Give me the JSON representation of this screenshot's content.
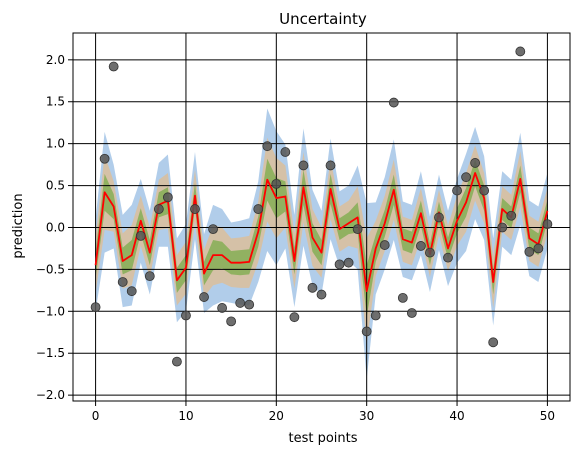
{
  "chart_data": {
    "type": "line",
    "title": "Uncertainty",
    "xlabel": "test points",
    "ylabel": "prediction",
    "xlim": [
      -2.5,
      52.5
    ],
    "ylim": [
      -2.07,
      2.32
    ],
    "xticks": [
      0,
      10,
      20,
      30,
      40,
      50
    ],
    "yticks": [
      -2.0,
      -1.5,
      -1.0,
      -0.5,
      0.0,
      0.5,
      1.0,
      1.5,
      2.0
    ],
    "xtick_labels": [
      "0",
      "10",
      "20",
      "30",
      "40",
      "50"
    ],
    "ytick_labels": [
      "−2.0",
      "−1.5",
      "−1.0",
      "−0.5",
      "0.0",
      "0.5",
      "1.0",
      "1.5",
      "2.0"
    ],
    "grid": true,
    "x": [
      0,
      1,
      2,
      3,
      4,
      5,
      6,
      7,
      8,
      9,
      10,
      11,
      12,
      13,
      14,
      15,
      16,
      17,
      18,
      19,
      20,
      21,
      22,
      23,
      24,
      25,
      26,
      27,
      28,
      29,
      30,
      31,
      32,
      33,
      34,
      35,
      36,
      37,
      38,
      39,
      40,
      41,
      42,
      43,
      44,
      45,
      46,
      47,
      48,
      49,
      50
    ],
    "series": [
      {
        "role": "mean",
        "color": "#ff0000",
        "values": [
          -0.45,
          0.42,
          0.25,
          -0.4,
          -0.33,
          0.08,
          -0.3,
          0.27,
          0.32,
          -0.63,
          -0.48,
          0.38,
          -0.55,
          -0.33,
          -0.33,
          -0.42,
          -0.42,
          -0.41,
          -0.05,
          0.57,
          0.35,
          0.37,
          -0.4,
          0.48,
          -0.12,
          -0.3,
          0.46,
          -0.02,
          0.05,
          0.12,
          -0.76,
          -0.25,
          0.05,
          0.45,
          -0.14,
          -0.18,
          0.17,
          -0.32,
          0.18,
          -0.25,
          0.08,
          0.3,
          0.65,
          0.35,
          -0.65,
          0.22,
          0.12,
          0.58,
          -0.13,
          -0.2,
          0.2
        ]
      },
      {
        "role": "observations",
        "color": "#555555",
        "points": [
          [
            0,
            -0.95
          ],
          [
            1,
            0.82
          ],
          [
            2,
            1.92
          ],
          [
            3,
            -0.65
          ],
          [
            4,
            -0.76
          ],
          [
            5,
            -0.1
          ],
          [
            6,
            -0.58
          ],
          [
            7,
            0.22
          ],
          [
            8,
            0.36
          ],
          [
            9,
            -1.6
          ],
          [
            10,
            -1.05
          ],
          [
            11,
            0.22
          ],
          [
            12,
            -0.83
          ],
          [
            13,
            -0.02
          ],
          [
            14,
            -0.96
          ],
          [
            15,
            -1.12
          ],
          [
            16,
            -0.9
          ],
          [
            17,
            -0.92
          ],
          [
            18,
            0.22
          ],
          [
            19,
            0.97
          ],
          [
            20,
            0.52
          ],
          [
            21,
            0.9
          ],
          [
            22,
            -1.07
          ],
          [
            23,
            0.74
          ],
          [
            24,
            -0.72
          ],
          [
            25,
            -0.8
          ],
          [
            26,
            0.74
          ],
          [
            27,
            -0.44
          ],
          [
            28,
            -0.42
          ],
          [
            29,
            -0.02
          ],
          [
            30,
            -1.24
          ],
          [
            31,
            -1.05
          ],
          [
            32,
            -0.21
          ],
          [
            33,
            1.49
          ],
          [
            34,
            -0.84
          ],
          [
            35,
            -1.02
          ],
          [
            36,
            -0.22
          ],
          [
            37,
            -0.3
          ],
          [
            38,
            0.12
          ],
          [
            39,
            -0.36
          ],
          [
            40,
            0.44
          ],
          [
            41,
            0.6
          ],
          [
            42,
            0.77
          ],
          [
            43,
            0.44
          ],
          [
            44,
            -1.37
          ],
          [
            45,
            0.0
          ],
          [
            46,
            0.14
          ],
          [
            47,
            2.1
          ],
          [
            48,
            -0.29
          ],
          [
            49,
            -0.25
          ],
          [
            50,
            0.04
          ]
        ]
      }
    ],
    "bands": [
      {
        "role": "outer",
        "color": "#a8c8e8",
        "half_width": [
          0.55,
          0.72,
          0.5,
          0.55,
          0.6,
          0.5,
          0.5,
          0.5,
          0.55,
          0.5,
          0.52,
          0.52,
          0.47,
          0.6,
          0.55,
          0.48,
          0.5,
          0.52,
          0.6,
          0.85,
          0.8,
          0.62,
          0.55,
          0.7,
          0.57,
          0.5,
          0.6,
          0.45,
          0.45,
          0.62,
          1.05,
          0.55,
          0.55,
          0.6,
          0.45,
          0.45,
          0.5,
          0.45,
          0.45,
          0.45,
          0.5,
          0.58,
          0.55,
          0.5,
          0.52,
          0.45,
          0.45,
          0.55,
          0.45,
          0.45,
          0.45
        ]
      },
      {
        "role": "middle",
        "color": "#d9c0a0",
        "half_width": [
          0.33,
          0.45,
          0.3,
          0.33,
          0.36,
          0.3,
          0.3,
          0.3,
          0.33,
          0.3,
          0.31,
          0.31,
          0.28,
          0.36,
          0.33,
          0.29,
          0.3,
          0.31,
          0.36,
          0.5,
          0.48,
          0.37,
          0.33,
          0.42,
          0.34,
          0.3,
          0.36,
          0.27,
          0.27,
          0.37,
          0.63,
          0.33,
          0.33,
          0.36,
          0.27,
          0.27,
          0.3,
          0.27,
          0.27,
          0.27,
          0.3,
          0.35,
          0.33,
          0.3,
          0.31,
          0.27,
          0.27,
          0.33,
          0.27,
          0.27,
          0.27
        ]
      },
      {
        "role": "inner",
        "color": "#8aaf5a",
        "half_width": [
          0.16,
          0.22,
          0.15,
          0.16,
          0.18,
          0.15,
          0.15,
          0.15,
          0.16,
          0.15,
          0.15,
          0.15,
          0.14,
          0.18,
          0.16,
          0.14,
          0.15,
          0.15,
          0.18,
          0.25,
          0.24,
          0.18,
          0.16,
          0.21,
          0.17,
          0.15,
          0.18,
          0.13,
          0.13,
          0.18,
          0.31,
          0.16,
          0.16,
          0.18,
          0.13,
          0.13,
          0.15,
          0.13,
          0.13,
          0.13,
          0.15,
          0.17,
          0.16,
          0.15,
          0.15,
          0.13,
          0.13,
          0.16,
          0.13,
          0.13,
          0.13
        ]
      }
    ]
  }
}
